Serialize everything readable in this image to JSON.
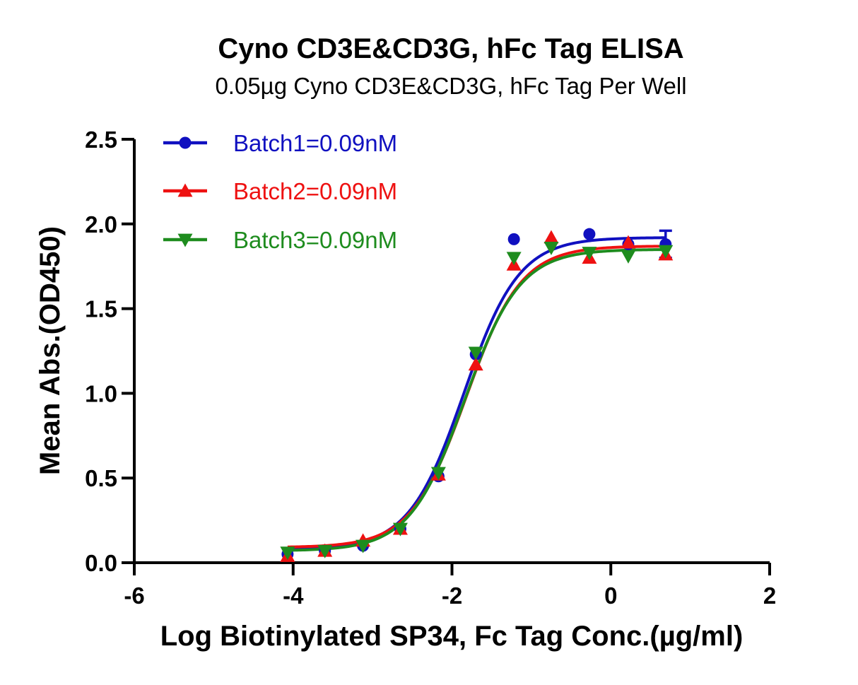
{
  "chart_data": {
    "type": "scatter",
    "title": "Cyno CD3E&CD3G, hFc Tag ELISA",
    "subtitle": "0.05µg Cyno CD3E&CD3G, hFc Tag Per Well",
    "xlabel": "Log Biotinylated SP34, Fc Tag Conc.(µg/ml)",
    "ylabel": "Mean Abs.(OD450)",
    "xlim": [
      -6,
      2
    ],
    "ylim": [
      0,
      2.5
    ],
    "x_ticks": [
      "-6",
      "-4",
      "-2",
      "0",
      "2"
    ],
    "y_ticks": [
      "0.0",
      "0.5",
      "1.0",
      "1.5",
      "2.0",
      "2.5"
    ],
    "legend_position": "top-left",
    "fit": "four-parameter logistic curve per series",
    "series": [
      {
        "name": "Batch1=0.09nM",
        "color": "#1010c0",
        "marker": "circle",
        "points": [
          {
            "x": -4.07,
            "y": 0.05
          },
          {
            "x": -3.6,
            "y": 0.07
          },
          {
            "x": -3.12,
            "y": 0.1
          },
          {
            "x": -2.65,
            "y": 0.2
          },
          {
            "x": -2.17,
            "y": 0.51
          },
          {
            "x": -1.7,
            "y": 1.23
          },
          {
            "x": -1.22,
            "y": 1.91
          },
          {
            "x": -0.75,
            "y": 1.89
          },
          {
            "x": -0.27,
            "y": 1.94
          },
          {
            "x": 0.22,
            "y": 1.88
          },
          {
            "x": 0.69,
            "y": 1.88
          }
        ],
        "curve": {
          "bottom": 0.08,
          "top": 1.92,
          "logec50": -1.85,
          "hill": 1.25
        }
      },
      {
        "name": "Batch2=0.09nM",
        "color": "#ee1111",
        "marker": "triangle-up",
        "points": [
          {
            "x": -4.07,
            "y": 0.04
          },
          {
            "x": -3.6,
            "y": 0.07
          },
          {
            "x": -3.12,
            "y": 0.13
          },
          {
            "x": -2.65,
            "y": 0.2
          },
          {
            "x": -2.17,
            "y": 0.52
          },
          {
            "x": -1.7,
            "y": 1.17
          },
          {
            "x": -1.22,
            "y": 1.76
          },
          {
            "x": -0.75,
            "y": 1.92
          },
          {
            "x": -0.27,
            "y": 1.8
          },
          {
            "x": 0.22,
            "y": 1.89
          },
          {
            "x": 0.69,
            "y": 1.82
          }
        ],
        "curve": {
          "bottom": 0.09,
          "top": 1.87,
          "logec50": -1.82,
          "hill": 1.25
        }
      },
      {
        "name": "Batch3=0.09nM",
        "color": "#1e8c1e",
        "marker": "triangle-down",
        "points": [
          {
            "x": -4.07,
            "y": 0.06
          },
          {
            "x": -3.6,
            "y": 0.07
          },
          {
            "x": -3.12,
            "y": 0.1
          },
          {
            "x": -2.65,
            "y": 0.2
          },
          {
            "x": -2.17,
            "y": 0.53
          },
          {
            "x": -1.7,
            "y": 1.24
          },
          {
            "x": -1.22,
            "y": 1.8
          },
          {
            "x": -0.75,
            "y": 1.86
          },
          {
            "x": -0.27,
            "y": 1.83
          },
          {
            "x": 0.22,
            "y": 1.81
          },
          {
            "x": 0.69,
            "y": 1.84
          }
        ],
        "curve": {
          "bottom": 0.07,
          "top": 1.85,
          "logec50": -1.84,
          "hill": 1.25
        }
      }
    ],
    "error_bars": [
      {
        "series": 0,
        "x": 0.69,
        "low": 1.8,
        "high": 1.96
      }
    ]
  }
}
